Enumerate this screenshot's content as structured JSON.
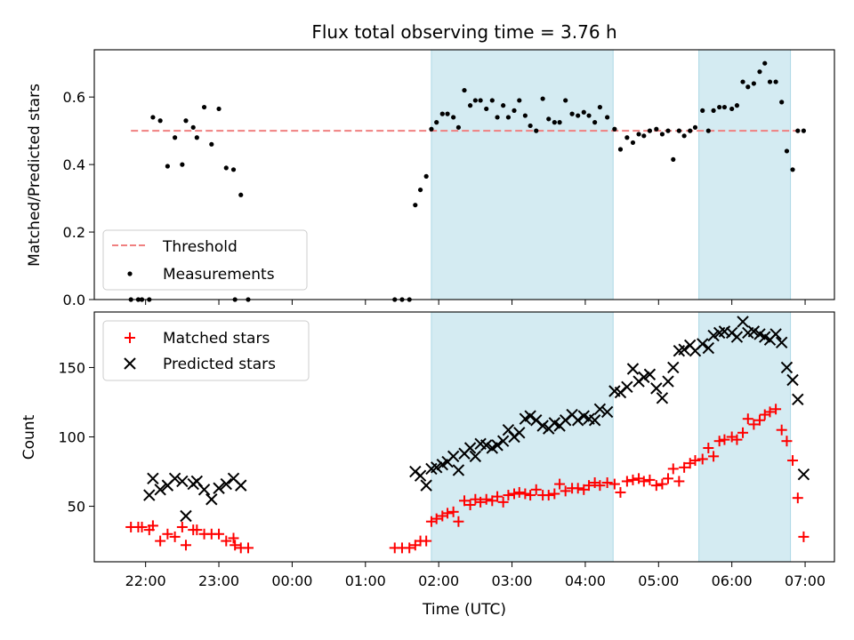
{
  "chart_data": [
    {
      "type": "scatter",
      "title": "Flux total observing time = 3.76 h",
      "ylabel": "Matched/Predicted stars",
      "xlabel": "",
      "ylim": [
        0,
        0.74
      ],
      "yticks": [
        0.0,
        0.2,
        0.4,
        0.6
      ],
      "ytick_labels": [
        "0.0",
        "0.2",
        "0.4",
        "0.6"
      ],
      "xlim": [
        -2.7,
        7.4
      ],
      "xticks": [
        -2,
        -1,
        0,
        1,
        2,
        3,
        4,
        5,
        6,
        7
      ],
      "grid": false,
      "legend_placement": "lower-left",
      "shaded_intervals": [
        [
          1.9,
          4.38
        ],
        [
          5.55,
          6.8
        ]
      ],
      "shade_color": "#add8e6",
      "threshold": {
        "name": "Threshold",
        "value": 0.5,
        "color": "#f08080",
        "x_range": [
          -2.2,
          7.0
        ]
      },
      "series": [
        {
          "name": "Measurements",
          "marker": "dot",
          "color": "#000000",
          "x": [
            -2.2,
            -2.1,
            -2.05,
            -1.95,
            -1.9,
            -1.8,
            -1.7,
            -1.6,
            -1.5,
            -1.45,
            -1.35,
            -1.3,
            -1.2,
            -1.1,
            -1.0,
            -0.9,
            -0.8,
            -0.78,
            -0.7,
            -0.6,
            1.4,
            1.5,
            1.6,
            1.68,
            1.75,
            1.83,
            1.9,
            1.97,
            2.05,
            2.12,
            2.2,
            2.27,
            2.35,
            2.43,
            2.5,
            2.57,
            2.65,
            2.73,
            2.8,
            2.88,
            2.95,
            3.03,
            3.1,
            3.18,
            3.25,
            3.33,
            3.42,
            3.5,
            3.58,
            3.65,
            3.73,
            3.82,
            3.9,
            3.98,
            4.05,
            4.13,
            4.2,
            4.3,
            4.4,
            4.48,
            4.57,
            4.65,
            4.73,
            4.8,
            4.88,
            4.97,
            5.05,
            5.13,
            5.2,
            5.28,
            5.35,
            5.43,
            5.5,
            5.6,
            5.68,
            5.75,
            5.83,
            5.9,
            6.0,
            6.07,
            6.15,
            6.22,
            6.3,
            6.38,
            6.45,
            6.52,
            6.6,
            6.68,
            6.75,
            6.83,
            6.9,
            6.98
          ],
          "y": [
            0.0,
            0.0,
            0.0,
            0.0,
            0.54,
            0.53,
            0.395,
            0.48,
            0.4,
            0.53,
            0.51,
            0.48,
            0.57,
            0.46,
            0.565,
            0.39,
            0.385,
            0.0,
            0.31,
            0.0,
            0.0,
            0.0,
            0.0,
            0.28,
            0.325,
            0.365,
            0.505,
            0.525,
            0.55,
            0.55,
            0.54,
            0.51,
            0.62,
            0.575,
            0.59,
            0.59,
            0.565,
            0.59,
            0.54,
            0.575,
            0.54,
            0.56,
            0.59,
            0.545,
            0.515,
            0.5,
            0.595,
            0.535,
            0.525,
            0.525,
            0.59,
            0.55,
            0.545,
            0.555,
            0.545,
            0.525,
            0.57,
            0.54,
            0.505,
            0.445,
            0.48,
            0.465,
            0.49,
            0.485,
            0.5,
            0.505,
            0.49,
            0.5,
            0.415,
            0.5,
            0.485,
            0.5,
            0.51,
            0.56,
            0.5,
            0.56,
            0.57,
            0.57,
            0.565,
            0.575,
            0.645,
            0.63,
            0.64,
            0.675,
            0.7,
            0.645,
            0.645,
            0.585,
            0.44,
            0.385,
            0.5,
            0.5
          ]
        }
      ]
    },
    {
      "type": "scatter",
      "title": "",
      "ylabel": "Count",
      "xlabel": "Time (UTC)",
      "ylim": [
        10,
        190
      ],
      "yticks": [
        50,
        100,
        150
      ],
      "ytick_labels": [
        "50",
        "100",
        "150"
      ],
      "xlim": [
        -2.7,
        7.4
      ],
      "xticks": [
        -2,
        -1,
        0,
        1,
        2,
        3,
        4,
        5,
        6,
        7
      ],
      "xtick_labels": [
        "22:00",
        "23:00",
        "00:00",
        "01:00",
        "02:00",
        "03:00",
        "04:00",
        "05:00",
        "06:00",
        "07:00"
      ],
      "grid": false,
      "legend_placement": "upper-left",
      "shaded_intervals": [
        [
          1.9,
          4.38
        ],
        [
          5.55,
          6.8
        ]
      ],
      "shade_color": "#add8e6",
      "series": [
        {
          "name": "Matched stars",
          "marker": "plus",
          "color": "#ff0000",
          "x": [
            -2.2,
            -2.1,
            -2.05,
            -1.95,
            -1.9,
            -1.8,
            -1.7,
            -1.6,
            -1.5,
            -1.45,
            -1.35,
            -1.3,
            -1.2,
            -1.1,
            -1.0,
            -0.9,
            -0.8,
            -0.78,
            -0.7,
            -0.6,
            1.4,
            1.5,
            1.6,
            1.68,
            1.75,
            1.83,
            1.9,
            1.97,
            2.05,
            2.12,
            2.2,
            2.27,
            2.35,
            2.43,
            2.5,
            2.57,
            2.65,
            2.73,
            2.8,
            2.88,
            2.95,
            3.03,
            3.1,
            3.18,
            3.25,
            3.33,
            3.42,
            3.5,
            3.58,
            3.65,
            3.73,
            3.82,
            3.9,
            3.98,
            4.05,
            4.13,
            4.2,
            4.3,
            4.4,
            4.48,
            4.57,
            4.65,
            4.73,
            4.8,
            4.88,
            4.97,
            5.05,
            5.13,
            5.2,
            5.28,
            5.35,
            5.43,
            5.5,
            5.6,
            5.68,
            5.75,
            5.83,
            5.9,
            6.0,
            6.07,
            6.15,
            6.22,
            6.3,
            6.38,
            6.45,
            6.52,
            6.6,
            6.68,
            6.75,
            6.83,
            6.9,
            6.98
          ],
          "y": [
            35,
            35,
            35,
            33,
            36,
            25,
            30,
            28,
            35,
            22,
            33,
            33,
            30,
            30,
            30,
            25,
            27,
            22,
            20,
            20,
            20,
            20,
            20,
            22,
            25,
            25,
            39,
            41,
            43,
            45,
            46,
            39,
            54,
            51,
            55,
            53,
            55,
            54,
            57,
            53,
            58,
            59,
            60,
            59,
            58,
            62,
            58,
            58,
            59,
            66,
            61,
            63,
            63,
            62,
            65,
            67,
            65,
            67,
            66,
            60,
            68,
            69,
            70,
            68,
            69,
            65,
            66,
            70,
            77,
            68,
            78,
            81,
            83,
            84,
            92,
            86,
            97,
            98,
            100,
            98,
            103,
            113,
            109,
            112,
            116,
            118,
            120,
            105,
            97,
            83,
            56,
            28
          ],
          "y_note": ""
        },
        {
          "name": "Predicted stars",
          "marker": "x",
          "color": "#000000",
          "x": [
            -1.95,
            -1.9,
            -1.8,
            -1.7,
            -1.6,
            -1.5,
            -1.45,
            -1.35,
            -1.3,
            -1.2,
            -1.1,
            -1.0,
            -0.9,
            -0.8,
            -0.7,
            1.68,
            1.75,
            1.83,
            1.9,
            1.97,
            2.05,
            2.12,
            2.2,
            2.27,
            2.35,
            2.43,
            2.5,
            2.57,
            2.65,
            2.73,
            2.8,
            2.88,
            2.95,
            3.03,
            3.1,
            3.18,
            3.25,
            3.33,
            3.42,
            3.5,
            3.58,
            3.65,
            3.73,
            3.82,
            3.9,
            3.98,
            4.05,
            4.13,
            4.2,
            4.3,
            4.4,
            4.48,
            4.57,
            4.65,
            4.73,
            4.8,
            4.88,
            4.97,
            5.05,
            5.13,
            5.2,
            5.28,
            5.35,
            5.43,
            5.5,
            5.6,
            5.68,
            5.75,
            5.83,
            5.9,
            6.0,
            6.07,
            6.15,
            6.22,
            6.3,
            6.38,
            6.45,
            6.52,
            6.6,
            6.68,
            6.75,
            6.83,
            6.9,
            6.98
          ],
          "y": [
            58,
            70,
            62,
            65,
            70,
            68,
            43,
            66,
            68,
            62,
            55,
            63,
            66,
            70,
            65,
            75,
            72,
            65,
            77,
            78,
            80,
            82,
            86,
            76,
            88,
            92,
            86,
            95,
            94,
            92,
            94,
            97,
            105,
            100,
            103,
            113,
            115,
            112,
            108,
            106,
            110,
            108,
            112,
            116,
            112,
            115,
            113,
            112,
            120,
            118,
            133,
            132,
            136,
            149,
            140,
            143,
            145,
            135,
            128,
            140,
            150,
            162,
            163,
            166,
            162,
            167,
            164,
            173,
            175,
            176,
            175,
            172,
            183,
            175,
            176,
            174,
            172,
            170,
            174,
            168,
            150,
            141,
            127,
            73
          ]
        }
      ]
    }
  ]
}
